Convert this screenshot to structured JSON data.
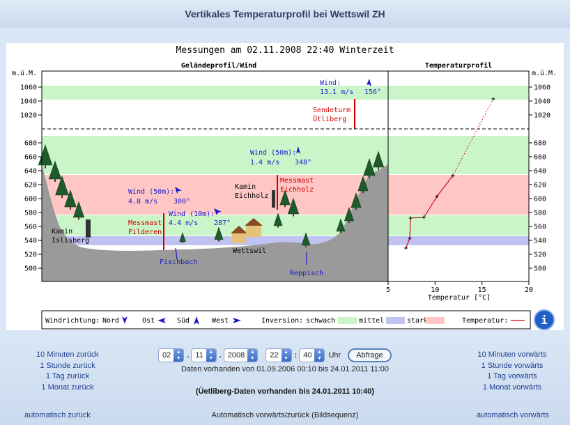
{
  "page_title": "Vertikales Temperaturprofil bei Wettswil ZH",
  "chart_data": {
    "type": "line",
    "title": "Messungen am 02.11.2008 22:40 Winterzeit",
    "left_panel_title": "Geländeprofil/Wind",
    "right_panel_title": "Temperaturprofil",
    "ylabel": "m.ü.M.",
    "ytick_labels": [
      "1060",
      "1040",
      "1020",
      "680",
      "660",
      "640",
      "620",
      "600",
      "580",
      "560",
      "540",
      "520",
      "500"
    ],
    "xlabel": "Temperatur [°C]",
    "xlim": [
      5,
      20
    ],
    "xticks": [
      "5",
      "10",
      "15",
      "20"
    ],
    "series": [
      {
        "name": "Temperatur",
        "points": [
          {
            "t": 16.2,
            "h": 1043
          },
          {
            "t": 11.9,
            "h": 633
          },
          {
            "t": 10.2,
            "h": 603
          },
          {
            "t": 8.8,
            "h": 573
          },
          {
            "t": 7.4,
            "h": 572
          },
          {
            "t": 7.3,
            "h": 543
          },
          {
            "t": 6.9,
            "h": 529
          }
        ]
      }
    ],
    "bands": [
      {
        "label": "schwach",
        "from": 1042,
        "to": 1062,
        "color": "#c9f5c9"
      },
      {
        "label": "schwach",
        "from": 635,
        "to": 690,
        "color": "#c9f5c9"
      },
      {
        "label": "stark",
        "from": 577,
        "to": 634,
        "color": "#ffc6c6"
      },
      {
        "label": "schwach",
        "from": 547,
        "to": 576,
        "color": "#c9f5c9"
      },
      {
        "label": "mittel",
        "from": 533,
        "to": 546,
        "color": "#c2c2f2"
      }
    ],
    "wind": [
      {
        "label": "Wind:",
        "speed": "13.1 m/s",
        "dir": "156°"
      },
      {
        "label": "Wind (50m):",
        "speed": "1.4 m/s",
        "dir": "348°"
      },
      {
        "label": "Wind (50m):",
        "speed": "4.8 m/s",
        "dir": "300°"
      },
      {
        "label": "Wind (10m):",
        "speed": "4.4 m/s",
        "dir": "287°"
      }
    ],
    "places": {
      "sendeturm": [
        "Sendeturm",
        "Ütliberg"
      ],
      "messmast_eichholz": [
        "Messmast",
        "Eichholz"
      ],
      "kamin_eichholz": [
        "Kamin",
        "Eichholz"
      ],
      "messmast_filderen": [
        "Messmast",
        "Filderen"
      ],
      "kamin_islisberg": [
        "Kamin",
        "Islisberg"
      ],
      "wettswil": "Wettswil",
      "fischbach": "Fischbach",
      "reppisch": "Reppisch"
    },
    "legend": {
      "windrichtung": "Windrichtung:",
      "nord": "Nord",
      "ost": "Ost",
      "sued": "Süd",
      "west": "West",
      "inversion": "Inversion:",
      "schwach": "schwach",
      "mittel": "mittel",
      "stark": "stark",
      "temperatur": "Temperatur:"
    },
    "colors": {
      "green": "#c9f5c9",
      "red": "#ffc6c6",
      "blue": "#c2c2f2",
      "temp_line": "#cc0000",
      "wind_text": "#1a1acc",
      "label_red": "#cc0000"
    }
  },
  "controls": {
    "day": "02",
    "month": "11",
    "year": "2008",
    "hour": "22",
    "minute": "40",
    "unit": "Uhr",
    "query_button": "Abfrage",
    "available": "Daten vorhanden von 01.09.2006 00:10 bis 24.01.2011 11:00",
    "uetliberg": "(Üetliberg-Daten vorhanden bis 24.01.2011 10:40)",
    "back": [
      "10 Minuten zurück",
      "1 Stunde zurück",
      "1 Tag zurück",
      "1 Monat zurück"
    ],
    "forward": [
      "10 Minuten vorwärts",
      "1 Stunde vorwärts",
      "1 Tag vorwärts",
      "1 Monat vorwärts"
    ],
    "auto_back": "automatisch zurück",
    "auto_center": "Automatisch vorwärts/zurück (Bildsequenz)",
    "auto_forward": "automatisch vorwärts"
  }
}
